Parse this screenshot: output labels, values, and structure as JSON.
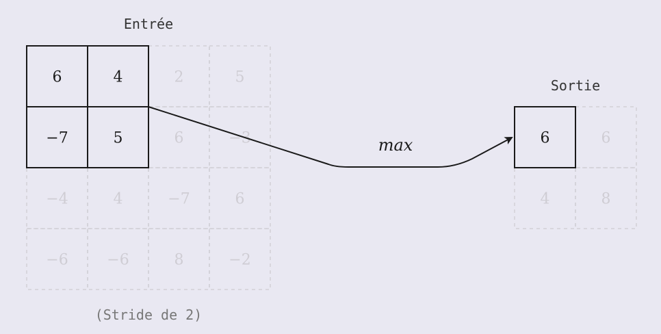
{
  "input": {
    "title": "Entrée",
    "caption": "(Stride de 2)",
    "grid": [
      [
        "6",
        "4",
        "2",
        "5"
      ],
      [
        "−7",
        "5",
        "6",
        "−3"
      ],
      [
        "−4",
        "4",
        "−7",
        "6"
      ],
      [
        "−6",
        "−6",
        "8",
        "−2"
      ]
    ],
    "active_window": {
      "rows": [
        0,
        1
      ],
      "cols": [
        0,
        1
      ]
    }
  },
  "output": {
    "title": "Sortie",
    "grid": [
      [
        "6",
        "6"
      ],
      [
        "4",
        "8"
      ]
    ],
    "active_cell": {
      "row": 0,
      "col": 0
    }
  },
  "operation": {
    "label": "max"
  },
  "colors": {
    "background": "#e9e8f2",
    "active_stroke": "#1a1a1a",
    "active_text": "#1a1a1a",
    "faded_stroke": "#d2d0d6",
    "faded_text": "#cfcdd4",
    "label_text": "#333333",
    "caption_text": "#777777"
  }
}
